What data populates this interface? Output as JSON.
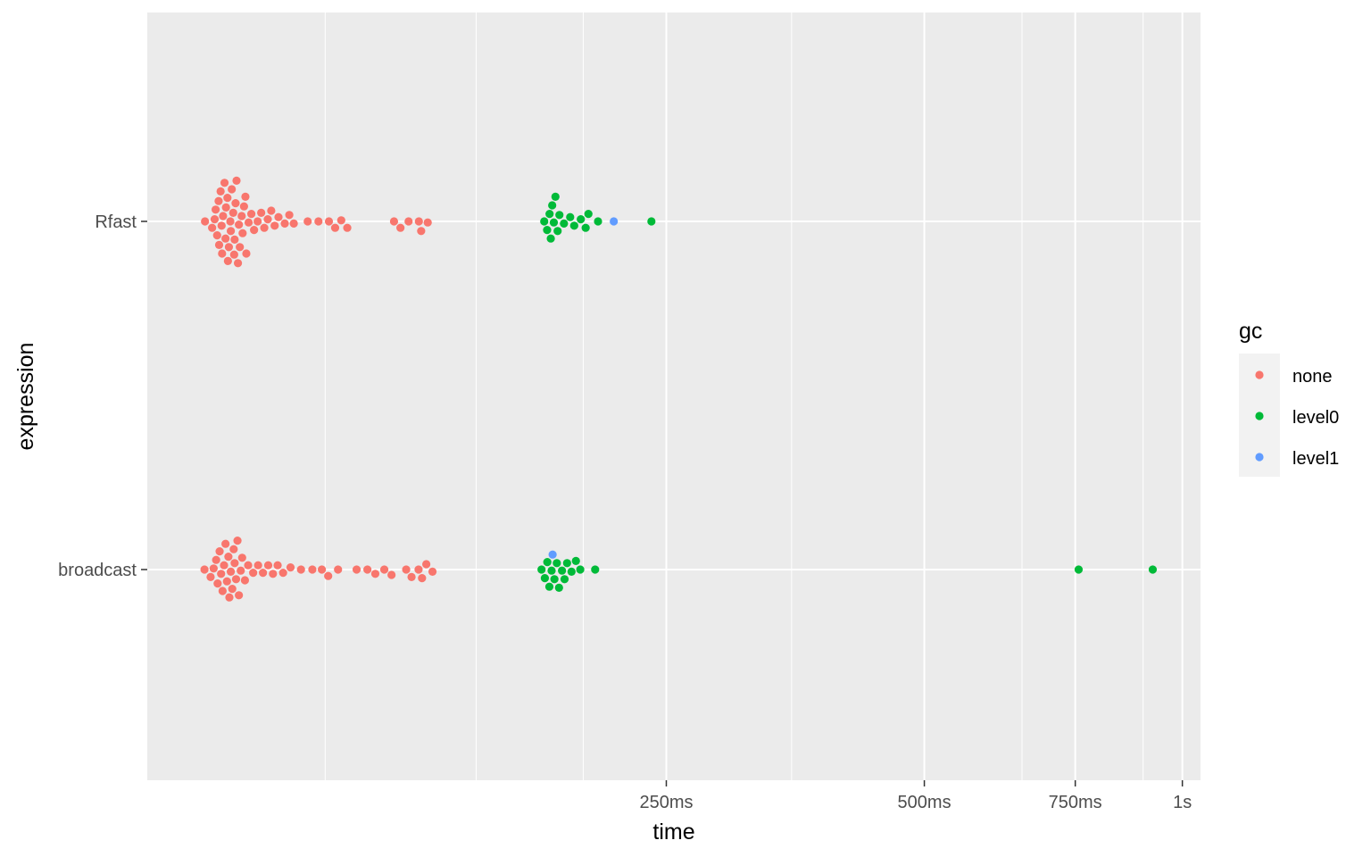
{
  "chart_data": {
    "type": "scatter",
    "subtype": "beeswarm",
    "x_scale": "log10",
    "xlabel": "time",
    "ylabel": "expression",
    "xlim_ms": [
      62,
      1050
    ],
    "x_ticks": [
      {
        "value_ms": 250,
        "label": "250ms"
      },
      {
        "value_ms": 500,
        "label": "500ms"
      },
      {
        "value_ms": 750,
        "label": "750ms"
      },
      {
        "value_ms": 1000,
        "label": "1s"
      }
    ],
    "x_minor_ms": [
      100,
      150,
      200,
      350,
      650,
      900
    ],
    "categories": [
      "broadcast",
      "Rfast"
    ],
    "grid": true,
    "legend_position": "right",
    "legend": {
      "title": "gc",
      "items": [
        {
          "label": "none",
          "color": "#F8766D"
        },
        {
          "label": "level0",
          "color": "#00BA38"
        },
        {
          "label": "level1",
          "color": "#619CFF"
        }
      ]
    },
    "series": [
      {
        "category": "Rfast",
        "gc": "none",
        "times_ms": [
          72.4,
          73.8,
          74.3,
          74.5,
          74.8,
          75.1,
          75.2,
          75.5,
          75.7,
          75.8,
          76.0,
          76.3,
          76.5,
          76.6,
          76.9,
          77.0,
          77.2,
          77.5,
          77.6,
          77.8,
          78.1,
          78.3,
          78.4,
          78.6,
          78.8,
          79.1,
          79.3,
          79.5,
          79.9,
          80.1,
          80.4,
          80.7,
          80.9,
          81.4,
          82.0,
          82.6,
          83.4,
          84.2,
          84.9,
          85.7,
          86.5,
          87.3,
          88.2,
          89.7,
          90.8,
          91.9,
          95.4,
          98.2,
          101.0,
          102.7,
          104.4,
          106.1,
          120.3,
          122.4,
          125.1,
          128.6,
          129.4,
          131.7
        ]
      },
      {
        "category": "Rfast",
        "gc": "level0",
        "times_ms": [
          180.1,
          181.5,
          182.7,
          183.3,
          184.0,
          184.8,
          185.6,
          186.7,
          187.6,
          189.9,
          193.1,
          195.2,
          198.7,
          201.3,
          202.8,
          208.1
        ]
      },
      {
        "category": "Rfast",
        "gc": "level1",
        "times_ms": [
          217.1
        ]
      },
      {
        "category": "Rfast",
        "gc": "level0",
        "times_ms": [
          240.2
        ]
      },
      {
        "category": "broadcast",
        "gc": "none",
        "times_ms": [
          72.3,
          73.5,
          74.1,
          74.6,
          74.9,
          75.3,
          75.6,
          75.9,
          76.2,
          76.5,
          76.8,
          77.1,
          77.3,
          77.6,
          77.9,
          78.2,
          78.4,
          78.7,
          79.0,
          79.3,
          79.7,
          80.0,
          80.6,
          81.3,
          82.4,
          83.5,
          84.6,
          85.8,
          86.9,
          88.0,
          89.3,
          91.1,
          93.7,
          96.6,
          99.1,
          100.8,
          103.5,
          108.8,
          112.0,
          114.4,
          117.2,
          119.5,
          124.3,
          126.1,
          128.5,
          129.7,
          131.2,
          133.4
        ]
      },
      {
        "category": "broadcast",
        "gc": "level0",
        "times_ms": [
          178.8,
          180.4,
          181.6,
          182.6,
          183.7,
          185.1,
          186.3,
          187.4,
          188.9,
          190.2,
          191.5,
          193.8,
          196.1,
          198.4,
          206.5
        ]
      },
      {
        "category": "broadcast",
        "gc": "level1",
        "times_ms": [
          184.2
        ]
      },
      {
        "category": "broadcast",
        "gc": "level0",
        "times_ms": [
          756.8,
          923.5
        ]
      }
    ]
  }
}
